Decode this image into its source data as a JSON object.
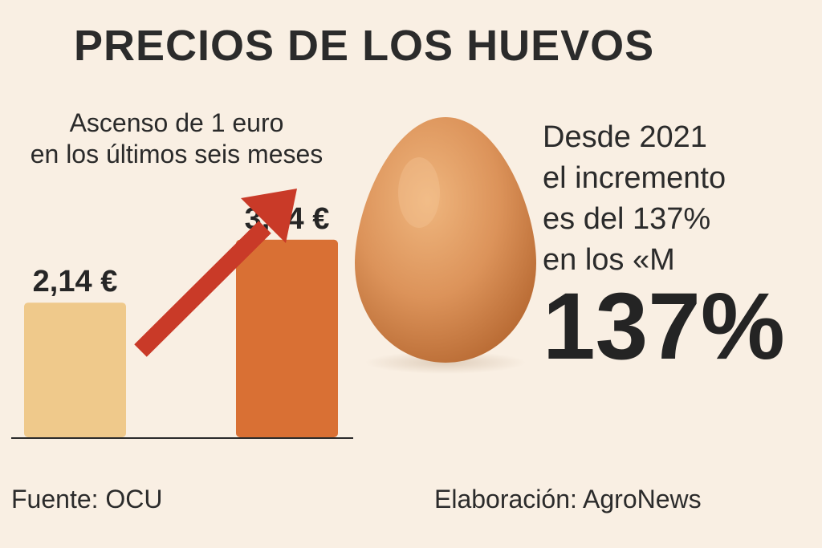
{
  "header": {
    "title": "PRECIOS DE LOS HUEVOS",
    "subtitle_lines": [
      "Ascenso de 1 euro",
      "en los últimos seis meses"
    ]
  },
  "side_text": {
    "lines": [
      "Desde 2021",
      "el incremento",
      "es del 137%",
      "en los «M"
    ],
    "big_figure": "137%"
  },
  "footer": {
    "source": "Fuente: OCU",
    "credit": "Elaboración: AgroNews"
  },
  "colors": {
    "background": "#f9efe3",
    "bar_before": "#efc98b",
    "bar_after": "#d97034",
    "arrow": "#c93a28",
    "egg": "#d68a50"
  },
  "icons": {
    "trend": "up-arrow-icon",
    "product": "egg-icon"
  },
  "chart_data": {
    "type": "bar",
    "categories": [
      "",
      ""
    ],
    "values": [
      2.14,
      3.14
    ],
    "value_labels": [
      "2,14 €",
      "3,14 €"
    ],
    "unit": "€",
    "ylim": [
      0,
      4.4
    ],
    "grid": false,
    "legend": "none",
    "title": "",
    "xlabel": "",
    "ylabel": ""
  }
}
